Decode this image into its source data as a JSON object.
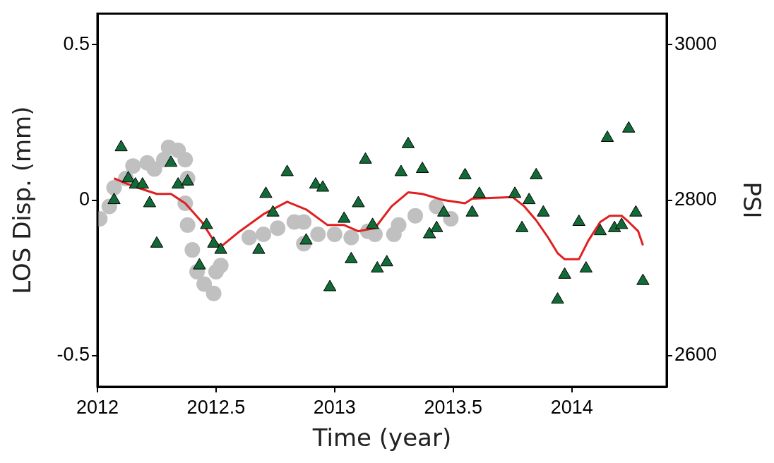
{
  "chart_data": {
    "type": "scatter",
    "xlabel": "Time (year)",
    "ylabel": "LOS Disp. (mm)",
    "y2label": "PSI",
    "xlim": [
      2012,
      2014.4
    ],
    "xticks": [
      2012,
      2012.5,
      2013,
      2013.5,
      2014
    ],
    "ylim": [
      -0.6,
      0.6
    ],
    "yticks": [
      -0.5,
      0,
      0.5
    ],
    "y2lim": [
      2560,
      3040
    ],
    "y2ticks": [
      2600,
      2800,
      3000
    ],
    "series": [
      {
        "marker": "circle",
        "color": "#c0c0c0",
        "x": [
          2012.01,
          2012.05,
          2012.07,
          2012.12,
          2012.15,
          2012.21,
          2012.24,
          2012.28,
          2012.3,
          2012.34,
          2012.37,
          2012.38,
          2012.37,
          2012.38,
          2012.4,
          2012.42,
          2012.45,
          2012.49,
          2012.5,
          2012.52,
          2012.64,
          2012.7,
          2012.76,
          2012.83,
          2012.87,
          2012.87,
          2012.93,
          2013.0,
          2013.07,
          2013.14,
          2013.17,
          2013.25,
          2013.27,
          2013.34,
          2013.43,
          2013.49
        ],
        "values": [
          -0.06,
          -0.02,
          0.04,
          0.07,
          0.11,
          0.12,
          0.1,
          0.13,
          0.17,
          0.16,
          0.13,
          0.07,
          -0.01,
          -0.08,
          -0.16,
          -0.23,
          -0.27,
          -0.3,
          -0.23,
          -0.21,
          -0.12,
          -0.11,
          -0.09,
          -0.07,
          -0.07,
          -0.14,
          -0.11,
          -0.11,
          -0.12,
          -0.1,
          -0.11,
          -0.11,
          -0.08,
          -0.05,
          -0.02,
          -0.06
        ]
      },
      {
        "type": "line",
        "marker": "none",
        "color": "#e02020",
        "x": [
          2012.07,
          2012.15,
          2012.25,
          2012.31,
          2012.37,
          2012.44,
          2012.49,
          2012.52,
          2012.6,
          2012.7,
          2012.8,
          2012.88,
          2012.97,
          2013.04,
          2013.1,
          2013.17,
          2013.24,
          2013.31,
          2013.37,
          2013.46,
          2013.55,
          2013.58,
          2013.75,
          2013.8,
          2013.85,
          2013.9,
          2013.94,
          2013.97,
          2014.03,
          2014.07,
          2014.12,
          2014.16,
          2014.21,
          2014.24,
          2014.28,
          2014.3
        ],
        "values": [
          0.07,
          0.045,
          0.02,
          0.02,
          -0.01,
          -0.07,
          -0.13,
          -0.15,
          -0.1,
          -0.045,
          -0.005,
          -0.03,
          -0.08,
          -0.08,
          -0.1,
          -0.09,
          -0.02,
          0.025,
          0.02,
          0.0,
          -0.01,
          0.005,
          0.01,
          -0.02,
          -0.065,
          -0.12,
          -0.17,
          -0.19,
          -0.19,
          -0.13,
          -0.07,
          -0.05,
          -0.05,
          -0.07,
          -0.1,
          -0.145
        ]
      },
      {
        "marker": "triangle",
        "color": "#126b37",
        "axis": "y2",
        "x": [
          2012.07,
          2012.1,
          2012.13,
          2012.16,
          2012.19,
          2012.22,
          2012.25,
          2012.31,
          2012.34,
          2012.38,
          2012.43,
          2012.46,
          2012.49,
          2012.52,
          2012.68,
          2012.71,
          2012.74,
          2012.8,
          2012.88,
          2012.92,
          2012.95,
          2012.98,
          2013.04,
          2013.07,
          2013.1,
          2013.13,
          2013.16,
          2013.18,
          2013.22,
          2013.28,
          2013.31,
          2013.37,
          2013.4,
          2013.43,
          2013.46,
          2013.55,
          2013.58,
          2013.61,
          2013.76,
          2013.79,
          2013.82,
          2013.85,
          2013.88,
          2013.94,
          2013.97,
          2014.03,
          2014.06,
          2014.12,
          2014.15,
          2014.18,
          2014.21,
          2014.24,
          2014.27,
          2014.3
        ],
        "values": [
          2800,
          2868,
          2828,
          2820,
          2820,
          2796,
          2744,
          2848,
          2820,
          2824,
          2716,
          2768,
          2744,
          2736,
          2736,
          2808,
          2784,
          2836,
          2748,
          2820,
          2816,
          2688,
          2776,
          2724,
          2796,
          2852,
          2768,
          2712,
          2720,
          2836,
          2872,
          2840,
          2756,
          2764,
          2784,
          2832,
          2784,
          2808,
          2808,
          2764,
          2800,
          2832,
          2784,
          2672,
          2704,
          2772,
          2712,
          2760,
          2880,
          2764,
          2768,
          2892,
          2784,
          2696
        ]
      }
    ]
  }
}
